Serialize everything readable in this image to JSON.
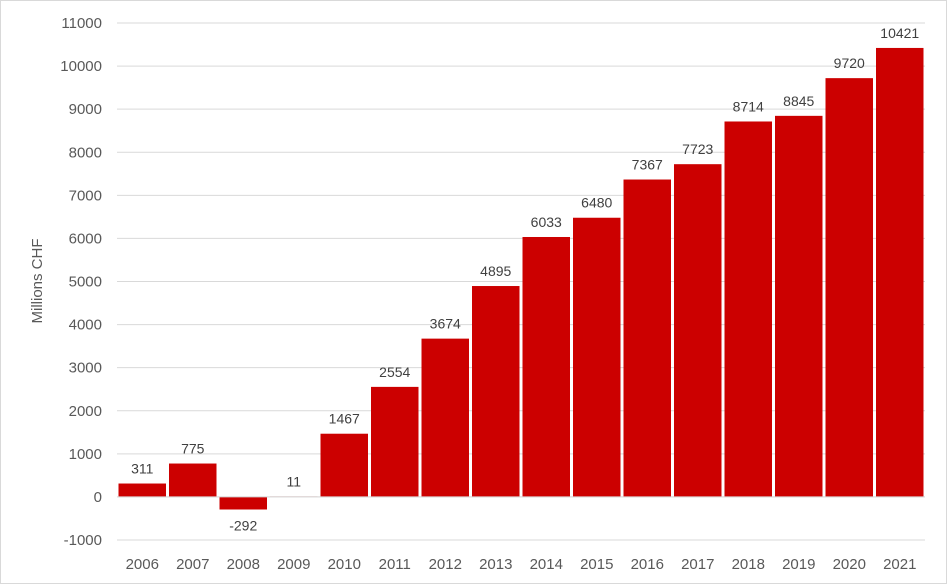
{
  "chart_data": {
    "type": "bar",
    "title": "",
    "xlabel": "",
    "ylabel": "Millions CHF",
    "ylim": [
      -1000,
      11000
    ],
    "ytick_step": 1000,
    "grid": true,
    "legend": "none",
    "bar_color": "#cc0000",
    "categories": [
      "2006",
      "2007",
      "2008",
      "2009",
      "2010",
      "2011",
      "2012",
      "2013",
      "2014",
      "2015",
      "2016",
      "2017",
      "2018",
      "2019",
      "2020",
      "2021"
    ],
    "values": [
      311,
      775,
      -292,
      11,
      1467,
      2554,
      3674,
      4895,
      6033,
      6480,
      7367,
      7723,
      8714,
      8845,
      9720,
      10421
    ]
  }
}
